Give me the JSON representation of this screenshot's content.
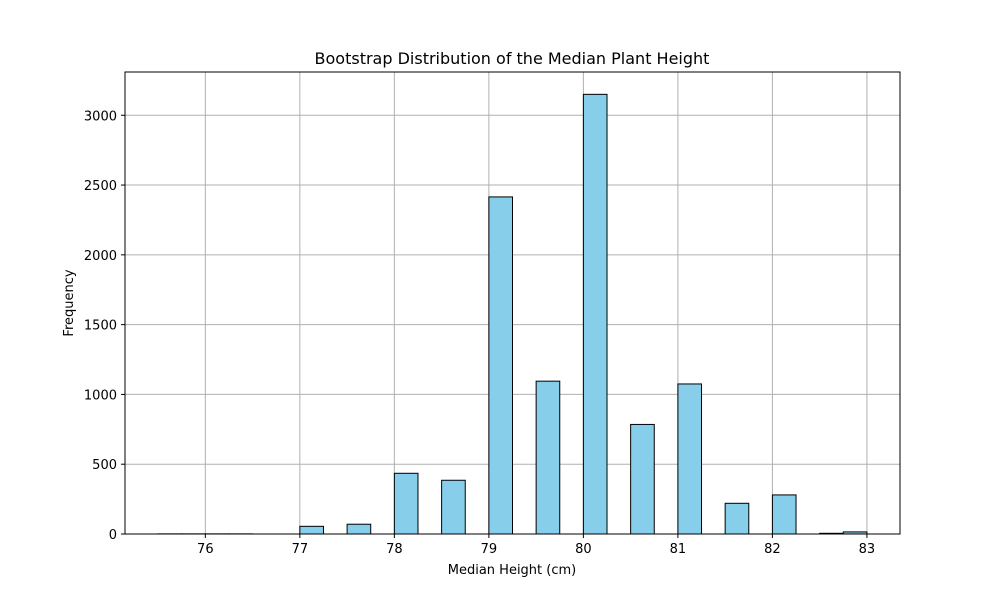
{
  "chart_data": {
    "type": "bar",
    "title": "Bootstrap Distribution of the Median Plant Height",
    "xlabel": "Median Height (cm)",
    "ylabel": "Frequency",
    "xlim": [
      75.15,
      83.35
    ],
    "ylim": [
      0,
      3310
    ],
    "grid": true,
    "bar_color": "#87CEEB",
    "edge_color": "#000000",
    "x_ticks": [
      76,
      77,
      78,
      79,
      80,
      81,
      82,
      83
    ],
    "y_ticks": [
      0,
      500,
      1000,
      1500,
      2000,
      2500,
      3000
    ],
    "bin_width": 0.25,
    "bins": [
      {
        "x": 75.5,
        "value": 1
      },
      {
        "x": 75.75,
        "value": 1
      },
      {
        "x": 76.0,
        "value": 1
      },
      {
        "x": 76.25,
        "value": 1
      },
      {
        "x": 77.0,
        "value": 55
      },
      {
        "x": 77.5,
        "value": 70
      },
      {
        "x": 78.0,
        "value": 435
      },
      {
        "x": 78.5,
        "value": 385
      },
      {
        "x": 79.0,
        "value": 2415
      },
      {
        "x": 79.5,
        "value": 1095
      },
      {
        "x": 80.0,
        "value": 3150
      },
      {
        "x": 80.5,
        "value": 785
      },
      {
        "x": 81.0,
        "value": 1075
      },
      {
        "x": 81.5,
        "value": 220
      },
      {
        "x": 82.0,
        "value": 280
      },
      {
        "x": 82.5,
        "value": 5
      },
      {
        "x": 82.75,
        "value": 15
      }
    ]
  }
}
